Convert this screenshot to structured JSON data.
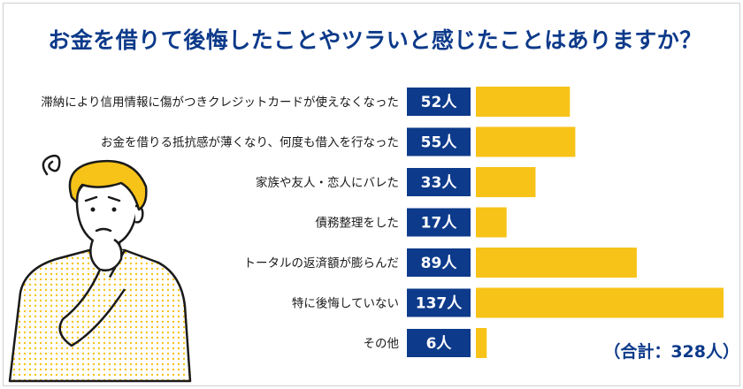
{
  "title": "お金を借りて後悔したことやツラいと感じたことはありますか？",
  "total_label": "（合計：328人）",
  "colors": {
    "title": "#0d3a8a",
    "badge": "#0d3a8a",
    "bar": "#f7c318",
    "figure_hair": "#f7c318",
    "figure_outline": "#1a1a1a"
  },
  "chart_data": {
    "type": "bar",
    "orientation": "horizontal",
    "title": "お金を借りて後悔したことやツラいと感じたことはありますか？",
    "unit": "人",
    "categories": [
      "滞納により信用情報に傷がつきクレジットカードが使えなくなった",
      "お金を借りる抵抗感が薄くなり、何度も借入を行なった",
      "家族や友人・恋人にバレた",
      "債務整理をした",
      "トータルの返済額が膨らんだ",
      "特に後悔していない",
      "その他"
    ],
    "values": [
      52,
      55,
      33,
      17,
      89,
      137,
      6
    ],
    "value_labels": [
      "52人",
      "55人",
      "33人",
      "17人",
      "89人",
      "137人",
      "6人"
    ],
    "total": 328,
    "xlim": [
      0,
      137
    ]
  }
}
